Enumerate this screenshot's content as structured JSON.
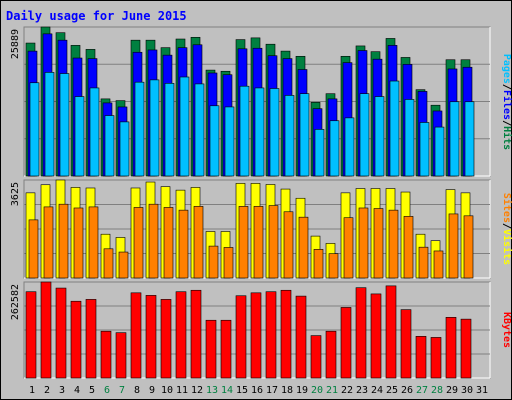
{
  "title": "Daily usage for June 2015",
  "colors": {
    "background": "#c0c0c0",
    "hits": "#008040",
    "files": "#0000ff",
    "pages": "#00c0ff",
    "visits": "#ffff00",
    "sites": "#ff8000",
    "kbytes": "#ff0000",
    "title": "#0000ff",
    "weekend_day": "#008040",
    "weekday": "#000000"
  },
  "chart_data": [
    {
      "type": "bar",
      "panel": "hits-files-pages",
      "ylabel": "Pages / Files / Hits",
      "max_label": "25889",
      "ylim": [
        0,
        25889
      ],
      "grid": true,
      "categories": [
        "1",
        "2",
        "3",
        "4",
        "5",
        "6",
        "7",
        "8",
        "9",
        "10",
        "11",
        "12",
        "13",
        "14",
        "15",
        "16",
        "17",
        "18",
        "19",
        "20",
        "21",
        "22",
        "23",
        "24",
        "25",
        "26",
        "27",
        "28",
        "29",
        "30",
        "31"
      ],
      "series": [
        {
          "name": "Hits",
          "color": "#008040",
          "values": [
            23100,
            25889,
            24900,
            22700,
            22000,
            13400,
            13100,
            23600,
            23600,
            22300,
            23800,
            24100,
            18400,
            18200,
            23700,
            24000,
            22900,
            21700,
            20800,
            12800,
            14300,
            20800,
            22600,
            21600,
            23900,
            20600,
            15000,
            12300,
            20200,
            20200,
            null
          ]
        },
        {
          "name": "Files",
          "color": "#0000ff",
          "values": [
            21700,
            24700,
            23600,
            20500,
            20400,
            12700,
            12000,
            21500,
            21900,
            21000,
            22300,
            22800,
            17900,
            17600,
            22100,
            22200,
            20900,
            20400,
            18500,
            11700,
            13400,
            19700,
            21800,
            20300,
            22700,
            19400,
            14700,
            11300,
            18600,
            18900,
            null
          ]
        },
        {
          "name": "Pages",
          "color": "#00c0ff",
          "values": [
            16200,
            18000,
            17800,
            13800,
            15300,
            10500,
            9400,
            16300,
            16700,
            16100,
            17200,
            16000,
            12200,
            12000,
            15600,
            15300,
            15200,
            14000,
            14300,
            8100,
            9600,
            10100,
            14300,
            13800,
            16500,
            13300,
            9300,
            8500,
            12900,
            12900,
            null
          ]
        }
      ]
    },
    {
      "type": "bar",
      "panel": "visits-sites",
      "ylabel": "Sites / Visits",
      "max_label": "3625",
      "ylim": [
        0,
        3625
      ],
      "grid": true,
      "categories": [
        "1",
        "2",
        "3",
        "4",
        "5",
        "6",
        "7",
        "8",
        "9",
        "10",
        "11",
        "12",
        "13",
        "14",
        "15",
        "16",
        "17",
        "18",
        "19",
        "20",
        "21",
        "22",
        "23",
        "24",
        "25",
        "26",
        "27",
        "28",
        "29",
        "30",
        "31"
      ],
      "series": [
        {
          "name": "Visits",
          "color": "#ffff00",
          "values": [
            3150,
            3450,
            3625,
            3350,
            3330,
            1620,
            1500,
            3330,
            3550,
            3380,
            3250,
            3350,
            1720,
            1720,
            3500,
            3500,
            3460,
            3290,
            2950,
            1550,
            1280,
            3150,
            3310,
            3310,
            3310,
            3180,
            1620,
            1380,
            3270,
            3150,
            null
          ]
        },
        {
          "name": "Sites",
          "color": "#ff8000",
          "values": [
            2150,
            2630,
            2730,
            2590,
            2630,
            1080,
            960,
            2610,
            2730,
            2610,
            2510,
            2650,
            1180,
            1130,
            2650,
            2650,
            2680,
            2450,
            2250,
            1060,
            900,
            2230,
            2590,
            2570,
            2510,
            2280,
            1140,
            1000,
            2370,
            2300,
            null
          ]
        }
      ]
    },
    {
      "type": "bar",
      "panel": "kbytes",
      "ylabel": "KBytes",
      "max_label": "262582",
      "ylim": [
        0,
        262582
      ],
      "grid": true,
      "categories": [
        "1",
        "2",
        "3",
        "4",
        "5",
        "6",
        "7",
        "8",
        "9",
        "10",
        "11",
        "12",
        "13",
        "14",
        "15",
        "16",
        "17",
        "18",
        "19",
        "20",
        "21",
        "22",
        "23",
        "24",
        "25",
        "26",
        "27",
        "28",
        "29",
        "30",
        "31"
      ],
      "series": [
        {
          "name": "KBytes",
          "color": "#ff0000",
          "values": [
            236000,
            262582,
            246000,
            210000,
            215000,
            128000,
            124000,
            233000,
            226000,
            215000,
            236000,
            240000,
            158000,
            158000,
            225000,
            233000,
            236000,
            240000,
            224000,
            116000,
            128000,
            193000,
            247000,
            230000,
            252000,
            187000,
            114000,
            111000,
            166000,
            161000,
            null
          ]
        }
      ]
    }
  ],
  "x_axis": {
    "days": [
      "1",
      "2",
      "3",
      "4",
      "5",
      "6",
      "7",
      "8",
      "9",
      "10",
      "11",
      "12",
      "13",
      "14",
      "15",
      "16",
      "17",
      "18",
      "19",
      "20",
      "21",
      "22",
      "23",
      "24",
      "25",
      "26",
      "27",
      "28",
      "29",
      "30",
      "31"
    ],
    "weekend": [
      6,
      7,
      13,
      14,
      20,
      21,
      27,
      28
    ]
  },
  "panel_labels": {
    "top": [
      {
        "text": "Pages",
        "color": "#00c0ff"
      },
      {
        "text": "/",
        "color": "#000000"
      },
      {
        "text": "Files",
        "color": "#0000ff"
      },
      {
        "text": "/",
        "color": "#000000"
      },
      {
        "text": "Hits",
        "color": "#008040"
      }
    ],
    "middle": [
      {
        "text": "Sites",
        "color": "#ff8000"
      },
      {
        "text": "/",
        "color": "#000000"
      },
      {
        "text": "Visits",
        "color": "#ffff00"
      }
    ],
    "bottom": [
      {
        "text": "KBytes",
        "color": "#ff0000"
      }
    ]
  }
}
